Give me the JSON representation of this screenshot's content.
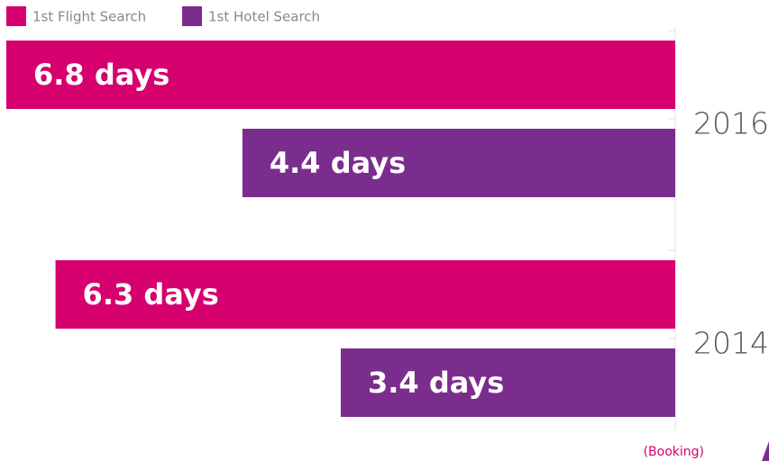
{
  "chart_data": {
    "type": "bar",
    "orientation": "horizontal",
    "categories": [
      "2016",
      "2014"
    ],
    "series": [
      {
        "name": "1st Flight Search",
        "color": "#d6006e",
        "values": [
          6.8,
          6.3
        ],
        "value_labels": [
          "6.8 days",
          "6.3 days"
        ]
      },
      {
        "name": "1st Hotel Search",
        "color": "#7b2d8e",
        "values": [
          4.4,
          3.4
        ],
        "value_labels": [
          "4.4 days",
          "3.4 days"
        ]
      }
    ],
    "source": "(Booking)"
  }
}
